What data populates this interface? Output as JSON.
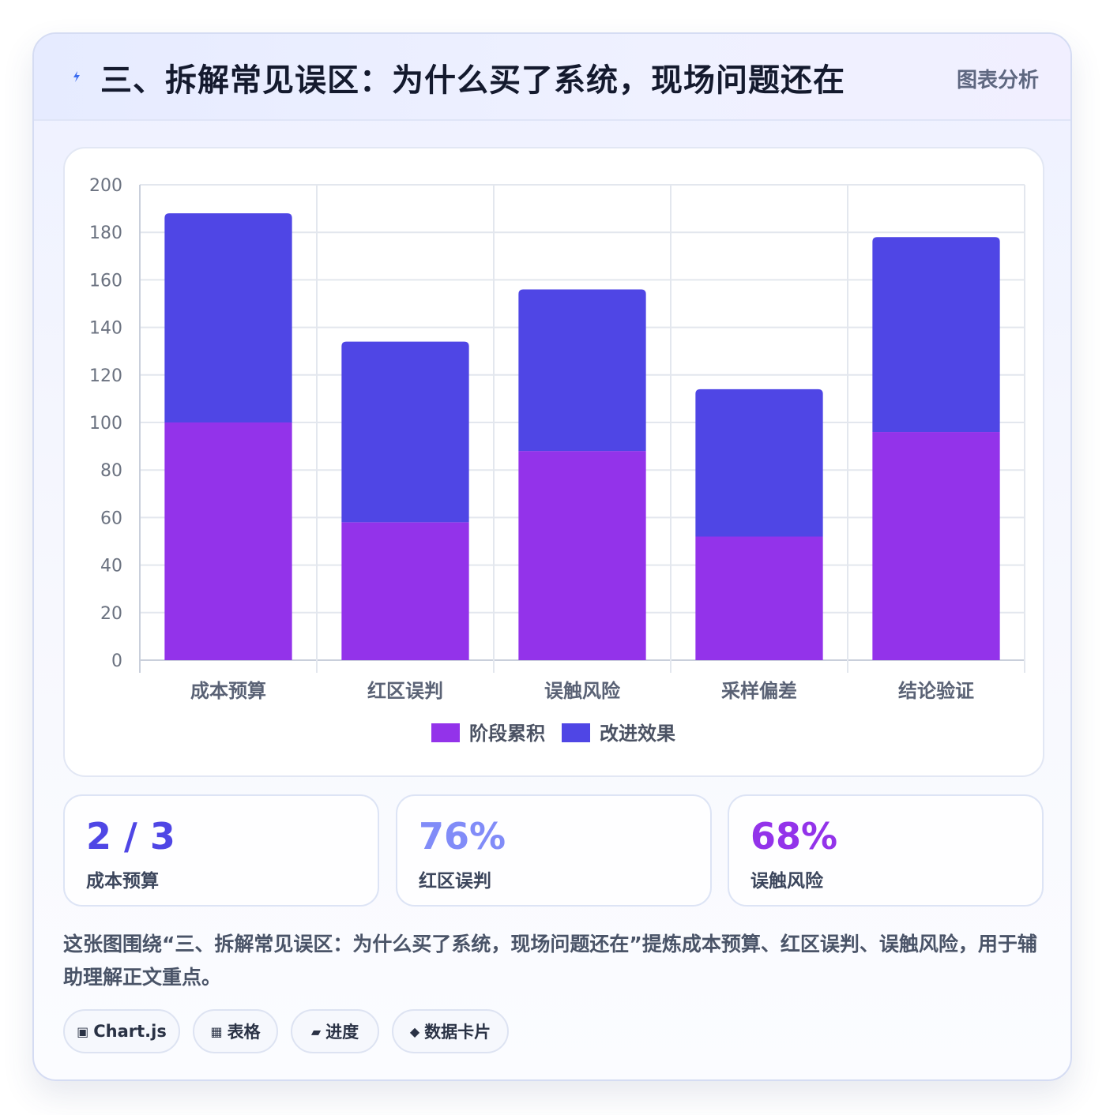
{
  "header": {
    "icon": "lightning-icon",
    "title": "三、拆解常见误区：为什么买了系统，现场问题还在",
    "tag": "图表分析"
  },
  "chart_data": {
    "type": "bar",
    "stacked": true,
    "categories": [
      "成本预算",
      "红区误判",
      "误触风险",
      "采样偏差",
      "结论验证"
    ],
    "series": [
      {
        "name": "阶段累积",
        "values": [
          100,
          58,
          88,
          52,
          96
        ],
        "color": "#9333ea"
      },
      {
        "name": "改进效果",
        "values": [
          88,
          76,
          68,
          62,
          82
        ],
        "color": "#4f46e5"
      }
    ],
    "ylim": [
      0,
      200
    ],
    "yticks": [
      0,
      20,
      40,
      60,
      80,
      100,
      120,
      140,
      160,
      180,
      200
    ],
    "grid": true,
    "legend": "bottom"
  },
  "stats": [
    {
      "value": "2 / 3",
      "label": "成本预算",
      "color": "#4f46e5"
    },
    {
      "value": "76%",
      "label": "红区误判",
      "color": "#818cf8"
    },
    {
      "value": "68%",
      "label": "误触风险",
      "color": "#9333ea"
    }
  ],
  "summary": "这张图围绕“三、拆解常见误区：为什么买了系统，现场问题还在”提炼成本预算、红区误判、误触风险，用于辅助理解正文重点。",
  "chips": [
    {
      "icon": "▣",
      "icon_name": "chart-icon",
      "label": "Chart.js"
    },
    {
      "icon": "▦",
      "icon_name": "table-icon",
      "label": "表格"
    },
    {
      "icon": "▰",
      "icon_name": "progress-icon",
      "label": "进度"
    },
    {
      "icon": "◆",
      "icon_name": "diamond-icon",
      "label": "数据卡片"
    }
  ]
}
